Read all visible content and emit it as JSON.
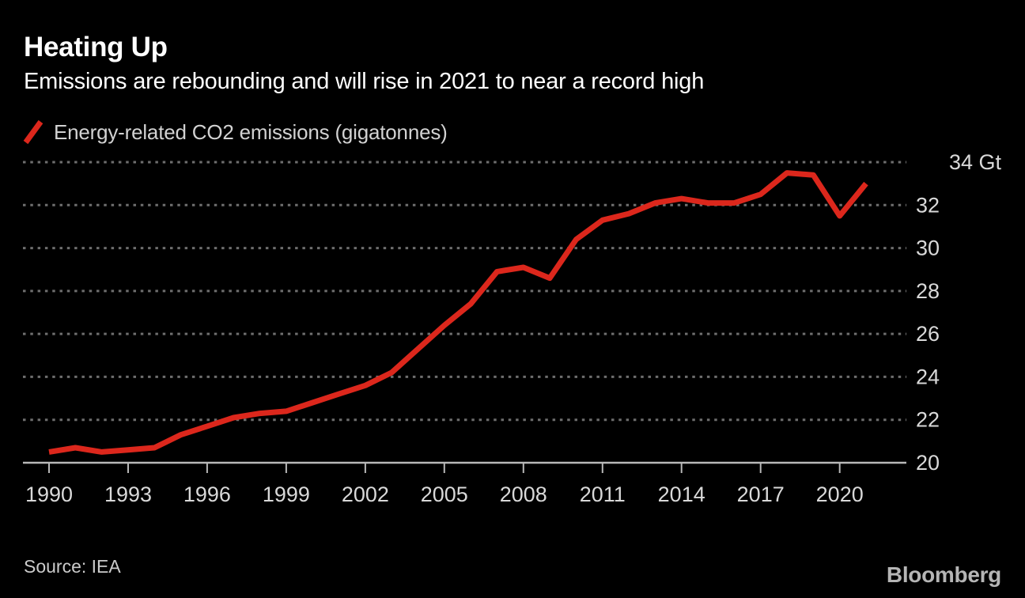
{
  "header": {
    "title": "Heating Up",
    "subtitle": "Emissions are rebounding and will rise in 2021 to near a record high"
  },
  "legend": {
    "label": "Energy-related CO2 emissions (gigatonnes)"
  },
  "footer": {
    "source": "Source: IEA",
    "brand": "Bloomberg"
  },
  "colors": {
    "background": "#000000",
    "accent_red": "#dc271c",
    "grid": "#6e6e6e",
    "axis": "#b8b8b8",
    "title_text": "#ffffff",
    "label_text": "#d9d9d9",
    "footer_text": "#cbcbcb",
    "brand_text": "#b5b5b5"
  },
  "chart_data": {
    "type": "line",
    "title": "Energy-related CO2 emissions (gigatonnes)",
    "unit": "Gt",
    "xlim": [
      1990,
      2021
    ],
    "ylim": [
      20,
      34
    ],
    "xticks": [
      1990,
      1993,
      1996,
      1999,
      2002,
      2005,
      2008,
      2011,
      2014,
      2017,
      2020
    ],
    "yticks": [
      20,
      22,
      24,
      26,
      28,
      30,
      32,
      34
    ],
    "y_top_label": "34 Gt",
    "grid": "dotted-horizontal",
    "legend_position": "top-left",
    "series": [
      {
        "name": "Energy-related CO2 emissions (gigatonnes)",
        "color": "#dc271c",
        "x": [
          1990,
          1991,
          1992,
          1993,
          1994,
          1995,
          1996,
          1997,
          1998,
          1999,
          2000,
          2001,
          2002,
          2003,
          2004,
          2005,
          2006,
          2007,
          2008,
          2009,
          2010,
          2011,
          2012,
          2013,
          2014,
          2015,
          2016,
          2017,
          2018,
          2019,
          2020,
          2021
        ],
        "values": [
          20.5,
          20.7,
          20.5,
          20.6,
          20.7,
          21.3,
          21.7,
          22.1,
          22.3,
          22.4,
          22.8,
          23.2,
          23.6,
          24.2,
          25.3,
          26.4,
          27.4,
          28.9,
          29.1,
          28.6,
          30.4,
          31.3,
          31.6,
          32.1,
          32.3,
          32.1,
          32.1,
          32.5,
          33.5,
          33.4,
          31.5,
          33.0
        ]
      }
    ]
  }
}
